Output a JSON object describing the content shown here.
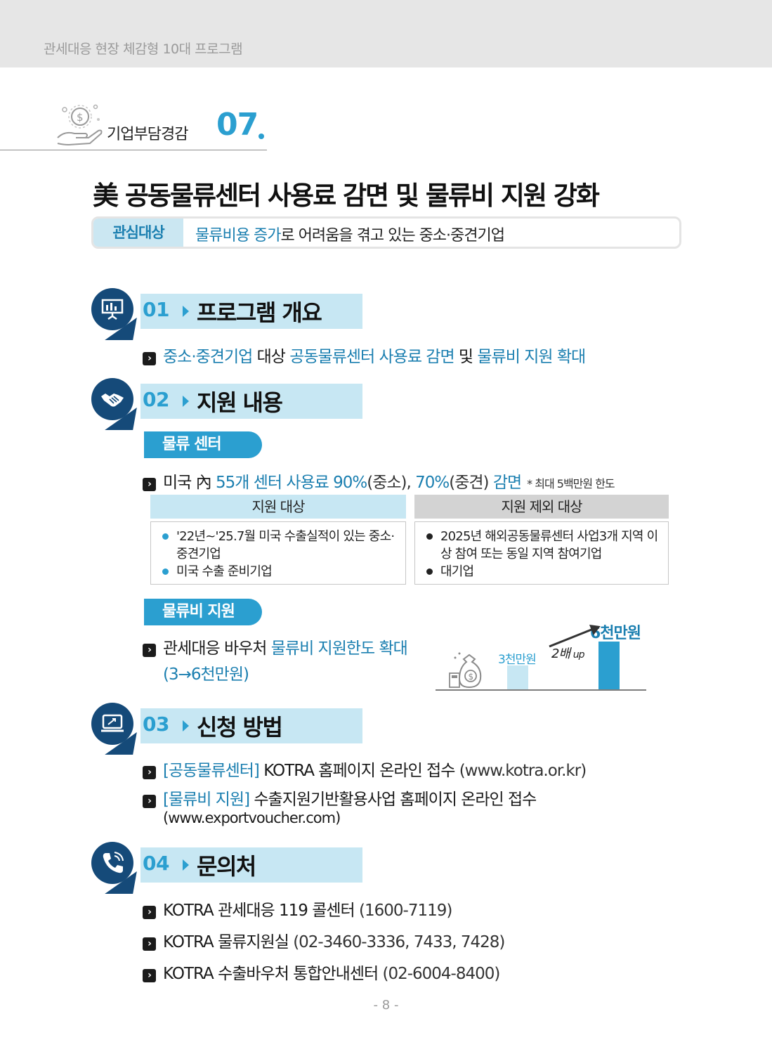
{
  "header": {
    "title": "관세대응 현장 체감형 10대 프로그램"
  },
  "category": {
    "name": "기업부담경감",
    "number": "07",
    "icon": "hand-coin-icon"
  },
  "page_title": "美 공동물류센터 사용료 감면 및 물류비 지원 강화",
  "target": {
    "label": "관심대상",
    "highlight": "물류비용 증가",
    "rest": "로 어려움을 겪고 있는 중소·중견기업"
  },
  "sections": [
    {
      "number": "01",
      "title": "프로그램 개요",
      "icon": "presentation-icon"
    },
    {
      "number": "02",
      "title": "지원 내용",
      "icon": "handshake-icon"
    },
    {
      "number": "03",
      "title": "신청 방법",
      "icon": "laptop-icon"
    },
    {
      "number": "04",
      "title": "문의처",
      "icon": "phone-icon"
    }
  ],
  "overview": {
    "a": "중소·중견기업",
    "b": " 대상 ",
    "c": "공동물류센터 사용료 감면",
    "d": " 및 ",
    "e": "물류비 지원 확대"
  },
  "support": {
    "center_label": "물류 센터",
    "center_line": {
      "a": "미국 內 ",
      "b": "55개 센터 사용료 90%",
      "c": "(중소), ",
      "d": "70%",
      "e": "(중견) ",
      "f": "감면",
      "note": "* 최대 5백만원 한도"
    },
    "table": {
      "eligible_header": "지원 대상",
      "eligible_items": [
        "'22년~'25.7월 미국 수출실적이 있는 중소·중견기업",
        "미국 수출 준비기업"
      ],
      "excluded_header": "지원 제외 대상",
      "excluded_items": [
        "2025년 해외공동물류센터 사업3개 지역 이상 참여 또는 동일 지역  참여기업",
        "대기업"
      ]
    },
    "logistics_label": "물류비 지원",
    "logistics_line": {
      "a": "관세대응 바우처 ",
      "b": "물류비 지원한도 확대",
      "c": "(3→6천만원)"
    },
    "chart_data": {
      "type": "bar",
      "categories": [
        "3천만원",
        "6천만원"
      ],
      "values": [
        3000,
        6000
      ],
      "unit": "만원",
      "annotation": "2배",
      "annotation_suffix": "up",
      "colors": [
        "#c7e7f3",
        "#2b9fd0"
      ]
    }
  },
  "apply": [
    {
      "tag": "[공동물류센터]",
      "text": " KOTRA 홈페이지 온라인 접수 ",
      "url": "(www.kotra.or.kr)"
    },
    {
      "tag": "[물류비 지원]",
      "text": " 수출지원기반활용사업 홈페이지 온라인 접수",
      "url": "(www.exportvoucher.com)"
    }
  ],
  "contacts": [
    {
      "name": "KOTRA 관세대응 119 콜센터 ",
      "phone": "(1600-7119)"
    },
    {
      "name": "KOTRA 물류지원실 ",
      "phone": "(02-3460-3336, 7433, 7428)"
    },
    {
      "name": "KOTRA 수출바우처 통합안내센터 ",
      "phone": "(02-6004-8400)"
    }
  ],
  "page_number": "- 8 -"
}
